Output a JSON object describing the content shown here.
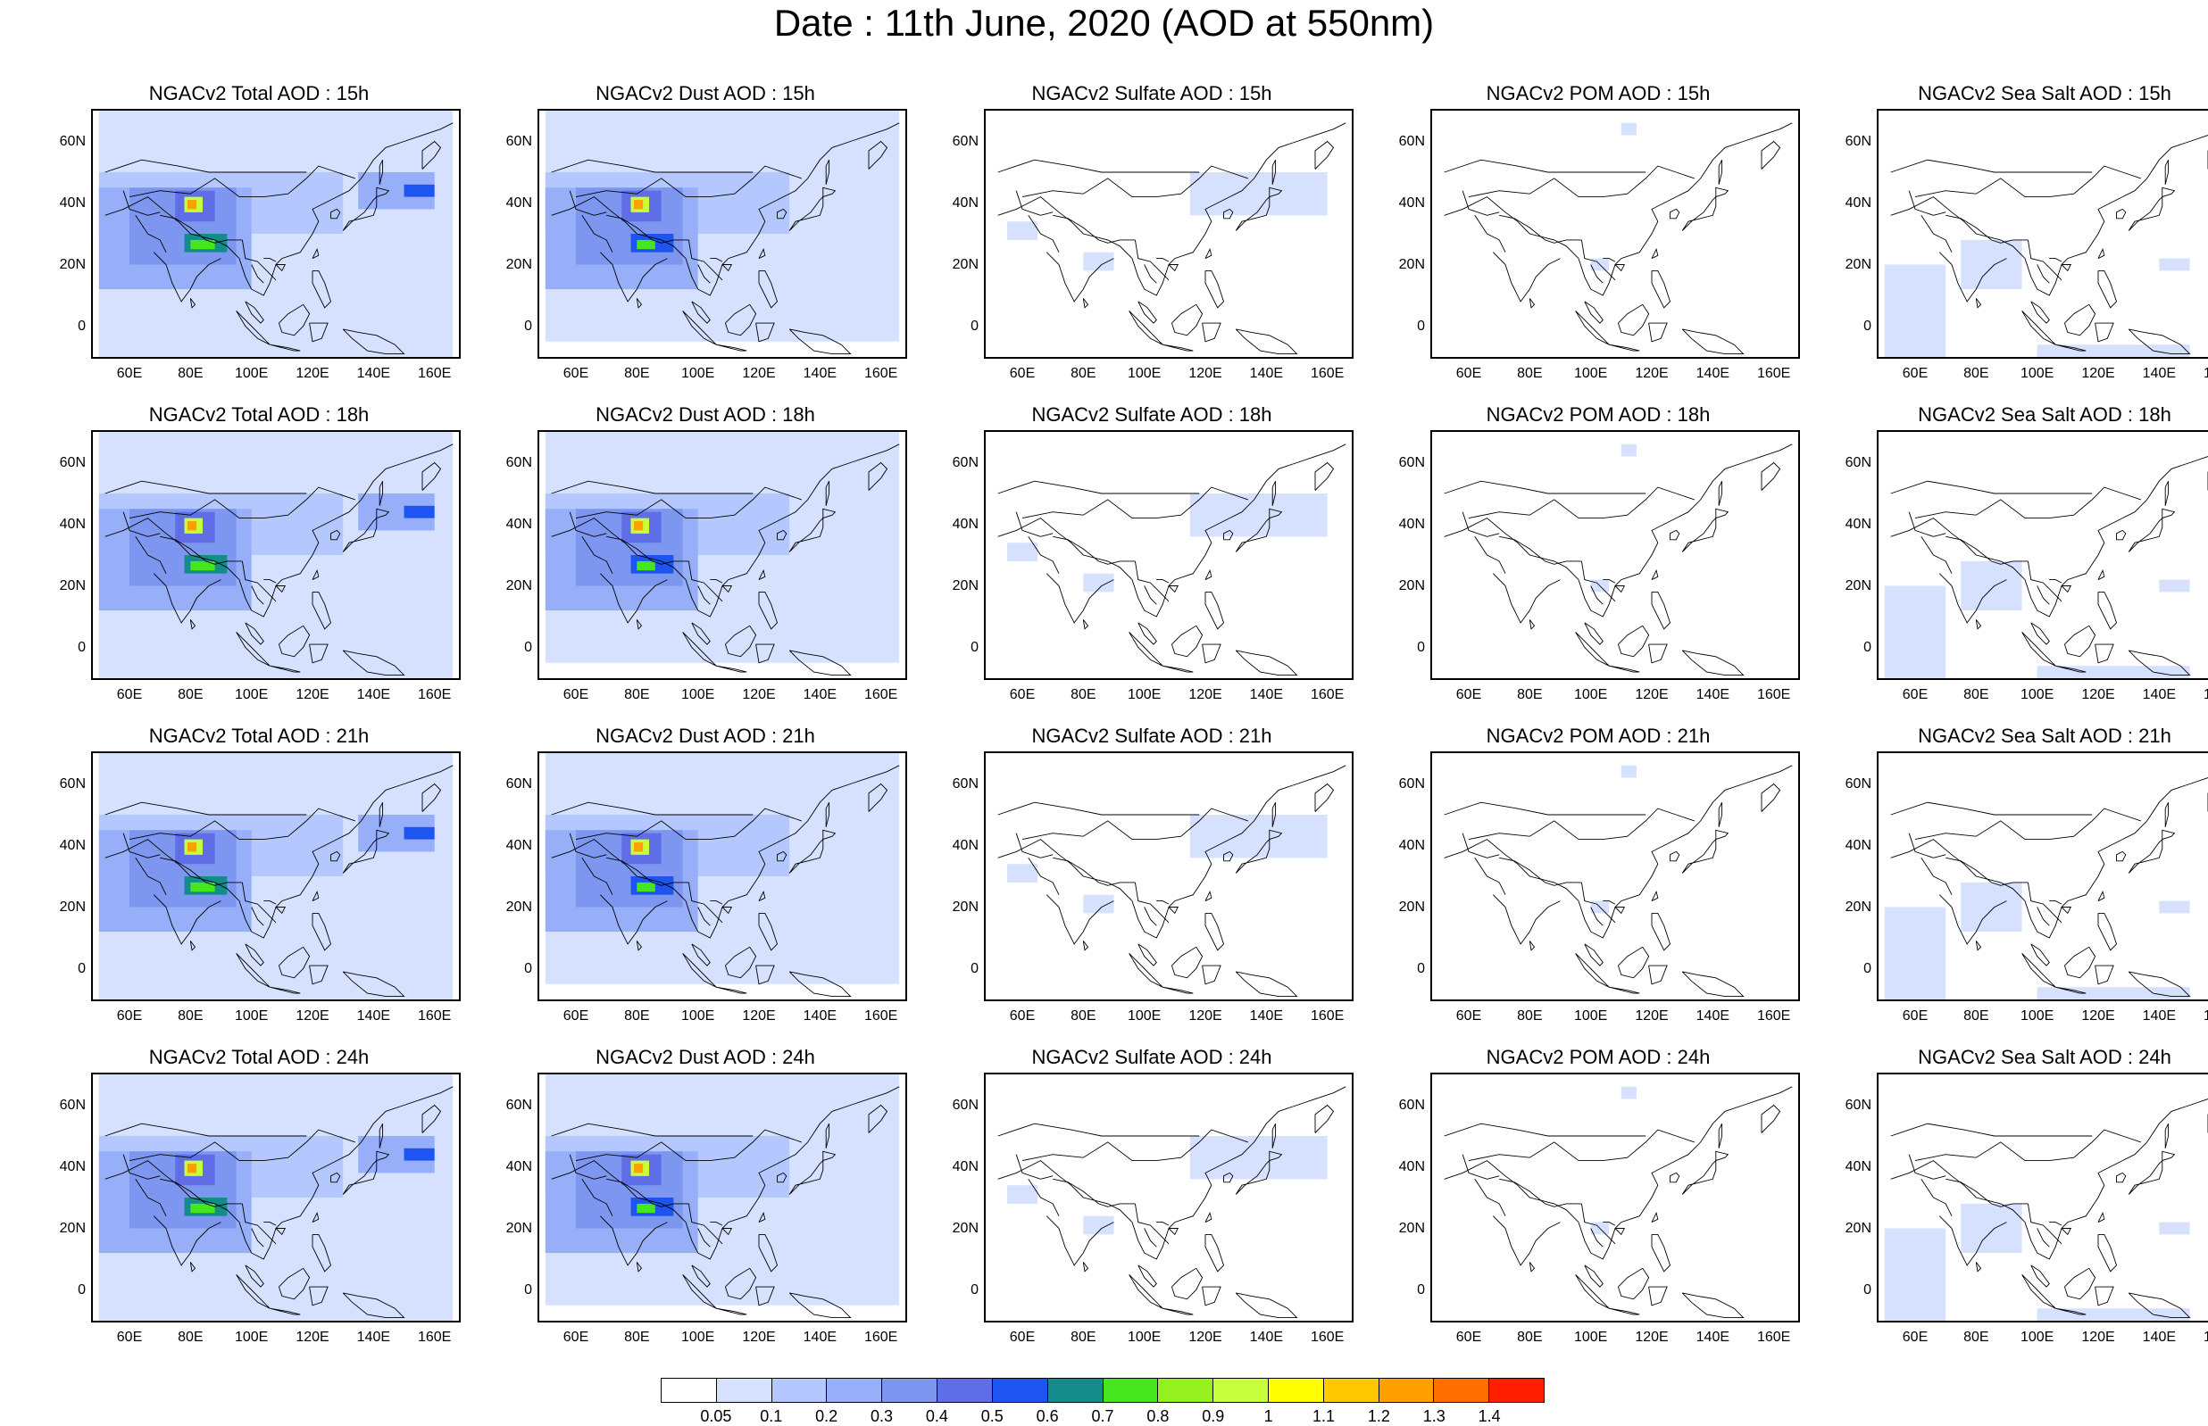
{
  "title": "Date : 11th June, 2020 (AOD at 550nm)",
  "x_ticks": [
    "60E",
    "80E",
    "100E",
    "120E",
    "140E",
    "160E"
  ],
  "y_ticks": [
    "60N",
    "40N",
    "20N",
    "0"
  ],
  "x_range": [
    48,
    168
  ],
  "y_range": [
    -10,
    70
  ],
  "panels": [
    {
      "title": "NGACv2 Total AOD : 15h",
      "species": "total",
      "hour": "15h"
    },
    {
      "title": "NGACv2 Dust AOD : 15h",
      "species": "dust",
      "hour": "15h"
    },
    {
      "title": "NGACv2 Sulfate AOD : 15h",
      "species": "sulfate",
      "hour": "15h"
    },
    {
      "title": "NGACv2 POM AOD : 15h",
      "species": "pom",
      "hour": "15h"
    },
    {
      "title": "NGACv2 Sea Salt AOD : 15h",
      "species": "seasalt",
      "hour": "15h"
    },
    {
      "title": "NGACv2 Total AOD : 18h",
      "species": "total",
      "hour": "18h"
    },
    {
      "title": "NGACv2 Dust AOD : 18h",
      "species": "dust",
      "hour": "18h"
    },
    {
      "title": "NGACv2 Sulfate AOD : 18h",
      "species": "sulfate",
      "hour": "18h"
    },
    {
      "title": "NGACv2 POM AOD : 18h",
      "species": "pom",
      "hour": "18h"
    },
    {
      "title": "NGACv2 Sea Salt AOD : 18h",
      "species": "seasalt",
      "hour": "18h"
    },
    {
      "title": "NGACv2 Total AOD : 21h",
      "species": "total",
      "hour": "21h"
    },
    {
      "title": "NGACv2 Dust AOD : 21h",
      "species": "dust",
      "hour": "21h"
    },
    {
      "title": "NGACv2 Sulfate AOD : 21h",
      "species": "sulfate",
      "hour": "21h"
    },
    {
      "title": "NGACv2 POM AOD : 21h",
      "species": "pom",
      "hour": "21h"
    },
    {
      "title": "NGACv2 Sea Salt AOD : 21h",
      "species": "seasalt",
      "hour": "21h"
    },
    {
      "title": "NGACv2 Total AOD : 24h",
      "species": "total",
      "hour": "24h"
    },
    {
      "title": "NGACv2 Dust AOD : 24h",
      "species": "dust",
      "hour": "24h"
    },
    {
      "title": "NGACv2 Sulfate AOD : 24h",
      "species": "sulfate",
      "hour": "24h"
    },
    {
      "title": "NGACv2 POM AOD : 24h",
      "species": "pom",
      "hour": "24h"
    },
    {
      "title": "NGACv2 Sea Salt  AOD : 24h",
      "species": "seasalt",
      "hour": "24h"
    }
  ],
  "colorbar": {
    "labels": [
      "0.05",
      "0.1",
      "0.2",
      "0.3",
      "0.4",
      "0.5",
      "0.6",
      "0.7",
      "0.8",
      "0.9",
      "1",
      "1.1",
      "1.2",
      "1.3",
      "1.4"
    ],
    "colors": [
      "#ffffff",
      "#d6e1ff",
      "#b4c8ff",
      "#96aff8",
      "#7d96f0",
      "#5f6ee6",
      "#1e55f0",
      "#148c8c",
      "#46e61e",
      "#96f01e",
      "#c8ff3c",
      "#ffff00",
      "#ffc800",
      "#ffa000",
      "#ff6e00",
      "#ff1e00"
    ]
  },
  "features": {
    "total": [
      {
        "lon": [
          50,
          166
        ],
        "lat": [
          -10,
          70
        ],
        "level": 1
      },
      {
        "lon": [
          50,
          130
        ],
        "lat": [
          30,
          50
        ],
        "level": 2
      },
      {
        "lon": [
          50,
          100
        ],
        "lat": [
          12,
          45
        ],
        "level": 3
      },
      {
        "lon": [
          135,
          160
        ],
        "lat": [
          38,
          50
        ],
        "level": 3
      },
      {
        "lon": [
          60,
          95
        ],
        "lat": [
          20,
          45
        ],
        "level": 4
      },
      {
        "lon": [
          75,
          88
        ],
        "lat": [
          34,
          44
        ],
        "level": 5
      },
      {
        "lon": [
          78,
          84
        ],
        "lat": [
          37,
          42
        ],
        "level": 10
      },
      {
        "lon": [
          79,
          82
        ],
        "lat": [
          38,
          41
        ],
        "level": 13
      },
      {
        "lon": [
          78,
          92
        ],
        "lat": [
          24,
          30
        ],
        "level": 7
      },
      {
        "lon": [
          80,
          88
        ],
        "lat": [
          25,
          28
        ],
        "level": 8
      },
      {
        "lon": [
          150,
          160
        ],
        "lat": [
          42,
          46
        ],
        "level": 6
      }
    ],
    "dust": [
      {
        "lon": [
          50,
          166
        ],
        "lat": [
          -5,
          70
        ],
        "level": 1
      },
      {
        "lon": [
          50,
          130
        ],
        "lat": [
          30,
          50
        ],
        "level": 2
      },
      {
        "lon": [
          50,
          100
        ],
        "lat": [
          12,
          45
        ],
        "level": 3
      },
      {
        "lon": [
          60,
          95
        ],
        "lat": [
          20,
          45
        ],
        "level": 4
      },
      {
        "lon": [
          75,
          88
        ],
        "lat": [
          34,
          44
        ],
        "level": 5
      },
      {
        "lon": [
          78,
          84
        ],
        "lat": [
          37,
          42
        ],
        "level": 10
      },
      {
        "lon": [
          79,
          82
        ],
        "lat": [
          38,
          41
        ],
        "level": 13
      },
      {
        "lon": [
          78,
          92
        ],
        "lat": [
          24,
          30
        ],
        "level": 6
      },
      {
        "lon": [
          80,
          86
        ],
        "lat": [
          25,
          28
        ],
        "level": 8
      }
    ],
    "sulfate": [
      {
        "lon": [
          115,
          160
        ],
        "lat": [
          36,
          50
        ],
        "level": 1
      },
      {
        "lon": [
          55,
          65
        ],
        "lat": [
          28,
          34
        ],
        "level": 1
      },
      {
        "lon": [
          80,
          90
        ],
        "lat": [
          18,
          24
        ],
        "level": 1
      }
    ],
    "pom": [
      {
        "lon": [
          110,
          115
        ],
        "lat": [
          62,
          66
        ],
        "level": 1
      },
      {
        "lon": [
          100,
          106
        ],
        "lat": [
          18,
          22
        ],
        "level": 1
      }
    ],
    "seasalt": [
      {
        "lon": [
          50,
          70
        ],
        "lat": [
          -10,
          20
        ],
        "level": 1
      },
      {
        "lon": [
          75,
          95
        ],
        "lat": [
          12,
          28
        ],
        "level": 1
      },
      {
        "lon": [
          140,
          150
        ],
        "lat": [
          18,
          22
        ],
        "level": 1
      },
      {
        "lon": [
          100,
          150
        ],
        "lat": [
          -10,
          -6
        ],
        "level": 1
      }
    ]
  }
}
